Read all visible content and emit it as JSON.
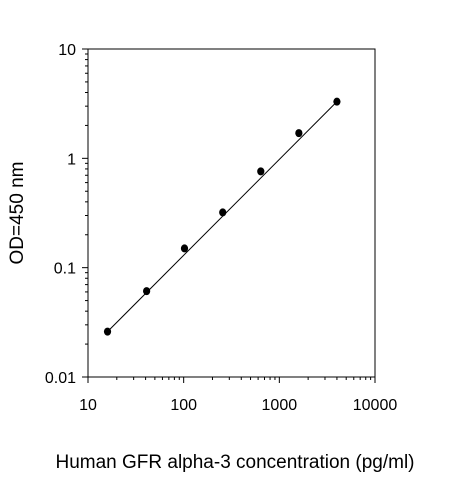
{
  "chart_data": {
    "type": "scatter",
    "title": "",
    "xlabel": "Human GFR alpha-3 concentration (pg/ml)",
    "ylabel": "OD=450 nm",
    "x_scale": "log",
    "y_scale": "log",
    "xlim": [
      10,
      10000
    ],
    "ylim": [
      0.01,
      10
    ],
    "x_ticks": [
      10,
      100,
      1000,
      10000
    ],
    "x_tick_labels": [
      "10",
      "100",
      "1000",
      "10000"
    ],
    "y_ticks": [
      0.01,
      0.1,
      1,
      10
    ],
    "y_tick_labels": [
      "0.01",
      "0.1",
      "1",
      "10"
    ],
    "grid": false,
    "legend": "none",
    "colors": {
      "marker": "#000000",
      "line": "#000000",
      "axis": "#000000"
    },
    "series": [
      {
        "points": [
          {
            "x": 16,
            "y": 0.026
          },
          {
            "x": 41,
            "y": 0.061
          },
          {
            "x": 102,
            "y": 0.15
          },
          {
            "x": 256,
            "y": 0.32
          },
          {
            "x": 640,
            "y": 0.76
          },
          {
            "x": 1600,
            "y": 1.7
          },
          {
            "x": 4000,
            "y": 3.3
          }
        ],
        "fit_line": {
          "x_start": 16,
          "y_start": 0.026,
          "x_end": 4000,
          "y_end": 3.3
        }
      }
    ]
  }
}
